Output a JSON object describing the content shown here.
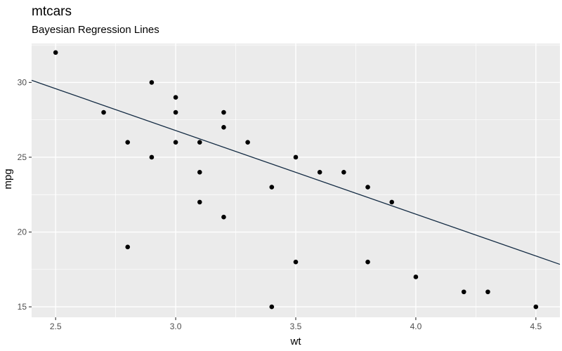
{
  "chart_data": {
    "type": "scatter",
    "title": "mtcars",
    "subtitle": "Bayesian Regression Lines",
    "xlabel": "wt",
    "ylabel": "mpg",
    "xlim": [
      2.4,
      4.6
    ],
    "ylim": [
      14.3,
      32.6
    ],
    "x_ticks": [
      2.5,
      3.0,
      3.5,
      4.0,
      4.5
    ],
    "x_tick_labels": [
      "2.5",
      "3.0",
      "3.5",
      "4.0",
      "4.5"
    ],
    "y_ticks": [
      15,
      20,
      25,
      30
    ],
    "y_tick_labels": [
      "15",
      "20",
      "25",
      "30"
    ],
    "grid": true,
    "legend": "none",
    "points": [
      {
        "x": 2.5,
        "y": 32
      },
      {
        "x": 2.7,
        "y": 28
      },
      {
        "x": 2.8,
        "y": 26
      },
      {
        "x": 2.8,
        "y": 19
      },
      {
        "x": 2.9,
        "y": 30
      },
      {
        "x": 2.9,
        "y": 25
      },
      {
        "x": 3.0,
        "y": 29
      },
      {
        "x": 3.0,
        "y": 28
      },
      {
        "x": 3.0,
        "y": 26
      },
      {
        "x": 3.1,
        "y": 26
      },
      {
        "x": 3.1,
        "y": 24
      },
      {
        "x": 3.1,
        "y": 22
      },
      {
        "x": 3.2,
        "y": 28
      },
      {
        "x": 3.2,
        "y": 27
      },
      {
        "x": 3.2,
        "y": 21
      },
      {
        "x": 3.3,
        "y": 26
      },
      {
        "x": 3.4,
        "y": 23
      },
      {
        "x": 3.4,
        "y": 15
      },
      {
        "x": 3.5,
        "y": 25
      },
      {
        "x": 3.5,
        "y": 18
      },
      {
        "x": 3.6,
        "y": 24
      },
      {
        "x": 3.7,
        "y": 24
      },
      {
        "x": 3.8,
        "y": 23
      },
      {
        "x": 3.8,
        "y": 18
      },
      {
        "x": 3.9,
        "y": 22
      },
      {
        "x": 4.0,
        "y": 17
      },
      {
        "x": 4.2,
        "y": 16
      },
      {
        "x": 4.3,
        "y": 16
      },
      {
        "x": 4.5,
        "y": 15
      }
    ],
    "regression_line": {
      "x": [
        2.4,
        4.6
      ],
      "y": [
        30.14,
        17.84
      ]
    },
    "colors": {
      "panel": "#ebebeb",
      "grid": "#ffffff",
      "point": "#000000",
      "line": "#132b43",
      "tick_text": "#4d4d4d"
    }
  }
}
